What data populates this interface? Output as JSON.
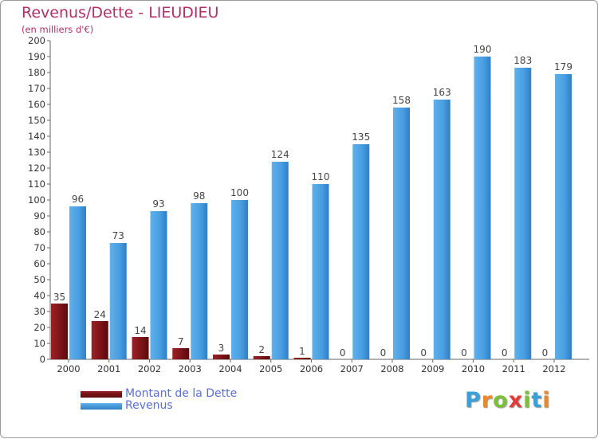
{
  "chart_data": {
    "type": "bar",
    "title": "Revenus/Dette - LIEUDIEU",
    "subtitle": "(en milliers d'€)",
    "xlabel": "",
    "ylabel": "",
    "ylim": [
      0,
      200
    ],
    "ytick_step": 10,
    "grid": false,
    "legend_position": "bottom-left",
    "categories": [
      "2000",
      "2001",
      "2002",
      "2003",
      "2004",
      "2005",
      "2006",
      "2007",
      "2008",
      "2009",
      "2010",
      "2011",
      "2012"
    ],
    "series": [
      {
        "name": "Montant de la Dette",
        "color": "#7a1014",
        "values": [
          35,
          24,
          14,
          7,
          3,
          2,
          1,
          0,
          0,
          0,
          0,
          0,
          0
        ]
      },
      {
        "name": "Revenus",
        "color": "#3f93d8",
        "values": [
          96,
          73,
          93,
          98,
          100,
          124,
          110,
          135,
          158,
          163,
          190,
          183,
          179
        ]
      }
    ]
  },
  "logo": {
    "text": "Proxiti"
  }
}
